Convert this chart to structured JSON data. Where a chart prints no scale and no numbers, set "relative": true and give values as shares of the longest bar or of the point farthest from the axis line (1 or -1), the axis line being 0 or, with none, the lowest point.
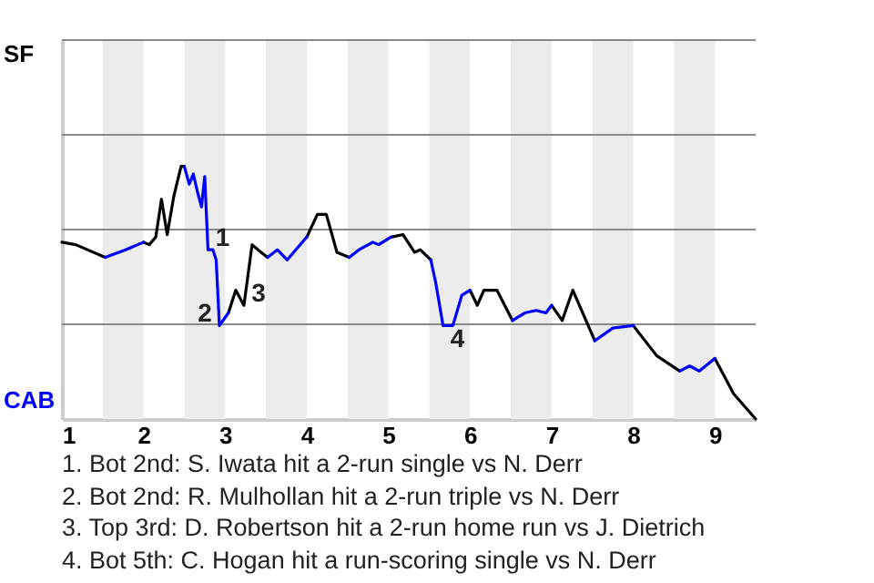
{
  "chart_data": {
    "type": "line",
    "relative": true,
    "x": [
      1,
      1.17,
      1.53,
      1.78,
      2,
      2.07,
      2.15,
      2.22,
      2.29,
      2.37,
      2.46,
      2.5,
      2.56,
      2.61,
      2.66,
      2.71,
      2.75,
      2.79,
      2.85,
      2.89,
      2.93,
      3.04,
      3.13,
      3.23,
      3.33,
      3.44,
      3.52,
      3.64,
      3.76,
      4,
      4.13,
      4.24,
      4.37,
      4.52,
      4.64,
      4.81,
      4.88,
      5.03,
      5.18,
      5.32,
      5.39,
      5.52,
      5.58,
      5.67,
      5.79,
      5.9,
      6,
      6.09,
      6.17,
      6.33,
      6.52,
      6.67,
      6.81,
      6.93,
      7,
      7.13,
      7.26,
      7.53,
      7.75,
      8,
      8.29,
      8.57,
      8.69,
      8.81,
      9,
      9.23,
      9.5
    ],
    "series": [
      {
        "name": "SF",
        "color": "#000000",
        "values": [
          0.7,
          0.69,
          0.64,
          null,
          0.7,
          0.69,
          0.72,
          0.87,
          0.73,
          0.88,
          1,
          1,
          null,
          null,
          null,
          null,
          null,
          null,
          null,
          null,
          null,
          0.42,
          0.51,
          0.45,
          0.69,
          0.66,
          0.64,
          null,
          null,
          0.72,
          0.81,
          0.81,
          0.66,
          0.64,
          null,
          null,
          null,
          0.72,
          0.73,
          0.66,
          0.67,
          0.63,
          null,
          null,
          null,
          null,
          0.51,
          0.45,
          0.51,
          0.51,
          0.39,
          null,
          null,
          null,
          0.45,
          0.39,
          0.51,
          0.31,
          null,
          0.37,
          0.25,
          0.19,
          null,
          null,
          0.24,
          0.1,
          0
        ]
      },
      {
        "name": "CAB",
        "color": "#0000ff",
        "values": [
          null,
          null,
          0.64,
          0.67,
          0.7,
          null,
          null,
          null,
          null,
          null,
          null,
          1,
          0.93,
          0.97,
          0.9,
          0.84,
          0.96,
          0.67,
          0.67,
          0.63,
          0.37,
          0.42,
          null,
          null,
          null,
          null,
          0.64,
          0.67,
          0.63,
          0.72,
          null,
          null,
          null,
          0.64,
          0.67,
          0.7,
          0.69,
          0.72,
          null,
          null,
          null,
          0.63,
          0.54,
          0.37,
          0.37,
          0.49,
          0.51,
          null,
          null,
          null,
          0.39,
          0.42,
          0.43,
          0.42,
          0.45,
          null,
          null,
          0.31,
          0.36,
          0.37,
          null,
          0.19,
          0.21,
          0.19,
          0.24,
          null,
          null
        ]
      }
    ],
    "xlim": [
      1,
      9.5
    ],
    "xticks": [
      1,
      2,
      3,
      4,
      5,
      6,
      7,
      8,
      9
    ],
    "ref_lines": [
      {
        "axis": "y",
        "value": 0.375,
        "color": "#888888"
      },
      {
        "axis": "y",
        "value": 0.75,
        "color": "#888888"
      },
      {
        "axis": "y",
        "value": 1.125,
        "color": "#888888"
      },
      {
        "axis": "y",
        "value": 1.5,
        "color": "#888888"
      }
    ],
    "bands": [
      {
        "axis": "x",
        "from": 1.5,
        "to": 2,
        "color": "#ececec"
      },
      {
        "axis": "x",
        "from": 2.5,
        "to": 3,
        "color": "#ececec"
      },
      {
        "axis": "x",
        "from": 3.5,
        "to": 4,
        "color": "#ececec"
      },
      {
        "axis": "x",
        "from": 4.5,
        "to": 5,
        "color": "#ececec"
      },
      {
        "axis": "x",
        "from": 5.5,
        "to": 6,
        "color": "#ececec"
      },
      {
        "axis": "x",
        "from": 6.5,
        "to": 7,
        "color": "#ececec"
      },
      {
        "axis": "x",
        "from": 7.5,
        "to": 8,
        "color": "#ececec"
      },
      {
        "axis": "x",
        "from": 8.5,
        "to": 9,
        "color": "#ececec"
      }
    ],
    "annotations": [
      {
        "text": "1",
        "x": 2.79,
        "y": 0.67
      },
      {
        "text": "2",
        "x": 2.93,
        "y": 0.37
      },
      {
        "text": "3",
        "x": 3.23,
        "y": 0.45
      },
      {
        "text": "4",
        "x": 5.67,
        "y": 0.37
      },
      "1. Bot 2nd: S. Iwata hit a 2-run single vs N. Derr",
      "2. Bot 2nd: R. Mulhollan hit a 2-run triple vs N. Derr",
      "3. Top 3rd: D. Robertson hit a 2-run home run vs J. Dietrich",
      "4. Bot 5th: C. Hogan hit a run-scoring single vs N. Derr"
    ]
  }
}
